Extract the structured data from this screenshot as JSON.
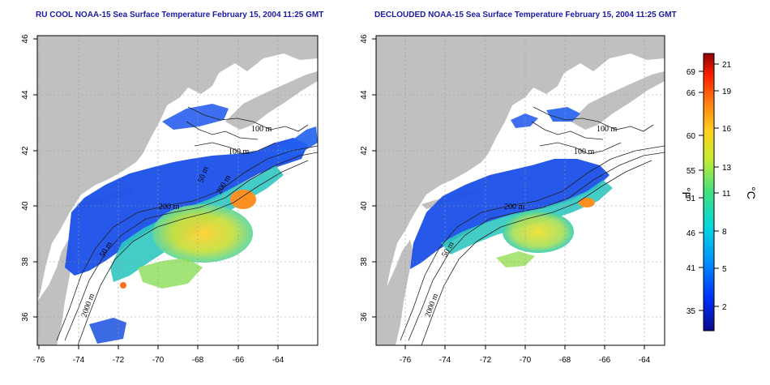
{
  "titles": {
    "left": "RU COOL NOAA-15 Sea Surface Temperature February 15, 2004 11:25 GMT",
    "right": "DECLOUDED NOAA-15 Sea Surface Temperature February 15, 2004 11:25 GMT"
  },
  "axes": {
    "lon_ticks": [
      "-76",
      "-74",
      "-72",
      "-70",
      "-68",
      "-66",
      "-64"
    ],
    "lat_ticks": [
      "36",
      "38",
      "40",
      "42",
      "44",
      "46"
    ]
  },
  "contour_labels": {
    "left": [
      "100 m",
      "100 m",
      "200 m",
      "50 m",
      "200 m",
      "2000 m",
      "50 m"
    ],
    "right": [
      "100 m",
      "100 m",
      "200 m",
      "50 m",
      "2000 m"
    ]
  },
  "colorbar": {
    "fahrenheit_ticks": [
      "69",
      "66",
      "60",
      "55",
      "51",
      "46",
      "41",
      "35"
    ],
    "celsius_ticks": [
      "21",
      "19",
      "16",
      "13",
      "11",
      "8",
      "5",
      "2"
    ],
    "fahrenheit_unit": "°F",
    "celsius_unit": "°C"
  },
  "colors": {
    "land": "#c0c0c0",
    "ocean_no_data": "#ffffff",
    "title": "#1a1aa6"
  }
}
